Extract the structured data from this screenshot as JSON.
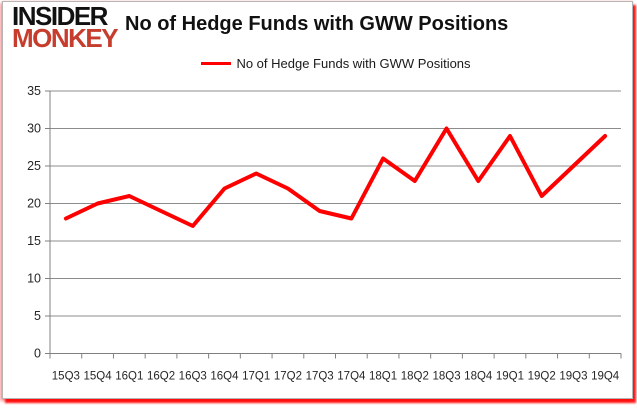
{
  "logo": {
    "line1": "INSIDER",
    "line2": "MONKEY",
    "line1_color": "#111111",
    "line2_color": "#c63d2e"
  },
  "header": {
    "title": "No of Hedge Funds with GWW Positions"
  },
  "legend": {
    "items": [
      {
        "label": "No of Hedge Funds with GWW Positions",
        "color": "#fe0000"
      }
    ]
  },
  "chart_data": {
    "type": "line",
    "title": "No of Hedge Funds with GWW Positions",
    "categories": [
      "15Q3",
      "15Q4",
      "16Q1",
      "16Q2",
      "16Q3",
      "16Q4",
      "17Q1",
      "17Q2",
      "17Q3",
      "17Q4",
      "18Q1",
      "18Q2",
      "18Q3",
      "18Q4",
      "19Q1",
      "19Q2",
      "19Q3",
      "19Q4"
    ],
    "series": [
      {
        "name": "No of Hedge Funds with GWW Positions",
        "color": "#fe0000",
        "values": [
          18,
          20,
          21,
          19,
          17,
          22,
          24,
          22,
          19,
          18,
          26,
          23,
          30,
          23,
          29,
          21,
          25,
          29
        ]
      }
    ],
    "xlabel": "",
    "ylabel": "",
    "ylim": [
      0,
      35
    ],
    "yticks": [
      0,
      5,
      10,
      15,
      20,
      25,
      30,
      35
    ],
    "grid": true,
    "legend_position": "top",
    "gridline_color": "#8c8c8c",
    "axis_color": "#808080",
    "tick_label_color": "#262626"
  }
}
